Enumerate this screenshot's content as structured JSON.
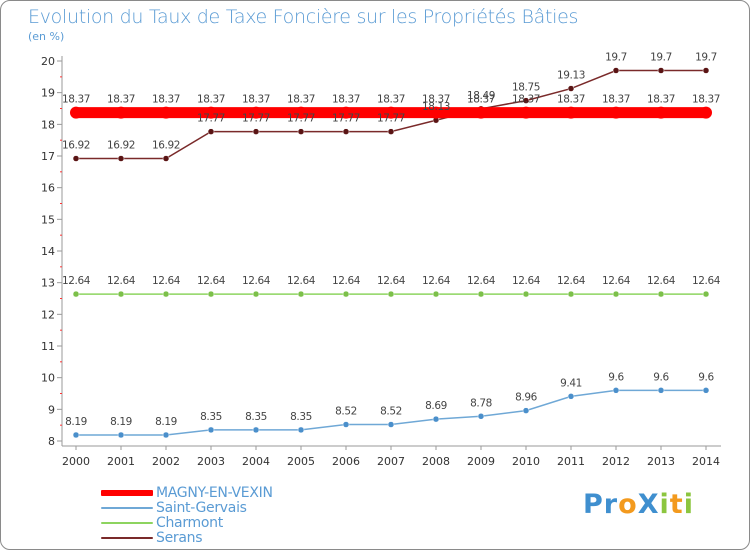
{
  "title": "Evolution du Taux de Taxe Foncière sur les Propriétés Bâties",
  "subtitle": "(en %)",
  "logo": {
    "text": "ProXiti",
    "letters": [
      {
        "ch": "P",
        "color": "#3f8fcf"
      },
      {
        "ch": "r",
        "color": "#3f8fcf"
      },
      {
        "ch": "o",
        "color": "#f39a1e"
      },
      {
        "ch": "X",
        "color": "#3f8fcf"
      },
      {
        "ch": "i",
        "color": "#8cc63f"
      },
      {
        "ch": "t",
        "color": "#f39a1e"
      },
      {
        "ch": "i",
        "color": "#8cc63f"
      }
    ]
  },
  "chart_data": {
    "type": "line",
    "title": "Evolution du Taux de Taxe Foncière sur les Propriétés Bâties",
    "ylabel": "(en %)",
    "xlabel": "",
    "ylim": [
      8,
      20
    ],
    "y_ticks": [
      "8",
      "9",
      "10",
      "11",
      "12",
      "13",
      "14",
      "15",
      "16",
      "17",
      "18",
      "19",
      "20"
    ],
    "x": [
      "2000",
      "2001",
      "2002",
      "2003",
      "2004",
      "2005",
      "2006",
      "2007",
      "2008",
      "2009",
      "2010",
      "2011",
      "2012",
      "2013",
      "2014"
    ],
    "grid": false,
    "legend_position": "bottom-left",
    "series": [
      {
        "name": "MAGNY-EN-VEXIN",
        "color": "#ff0000",
        "values": [
          18.37,
          18.37,
          18.37,
          18.37,
          18.37,
          18.37,
          18.37,
          18.37,
          18.37,
          18.37,
          18.37,
          18.37,
          18.37,
          18.37,
          18.37
        ],
        "labels": [
          "18.37",
          "18.37",
          "18.37",
          "18.37",
          "18.37",
          "18.37",
          "18.37",
          "18.37",
          "18.37",
          "18.37",
          "18.37",
          "18.37",
          "18.37",
          "18.37",
          "18.37"
        ]
      },
      {
        "name": "Saint-Gervais",
        "color": "#6fa8d6",
        "marker": "#4a8fcb",
        "values": [
          8.19,
          8.19,
          8.19,
          8.35,
          8.35,
          8.35,
          8.52,
          8.52,
          8.69,
          8.78,
          8.96,
          9.41,
          9.6,
          9.6,
          9.6
        ],
        "labels": [
          "8.19",
          "8.19",
          "8.19",
          "8.35",
          "8.35",
          "8.35",
          "8.52",
          "8.52",
          "8.69",
          "8.78",
          "8.96",
          "9.41",
          "9.6",
          "9.6",
          "9.6"
        ]
      },
      {
        "name": "Charmont",
        "color": "#8dd45f",
        "marker": "#7cc04a",
        "values": [
          12.64,
          12.64,
          12.64,
          12.64,
          12.64,
          12.64,
          12.64,
          12.64,
          12.64,
          12.64,
          12.64,
          12.64,
          12.64,
          12.64,
          12.64
        ],
        "labels": [
          "12.64",
          "12.64",
          "12.64",
          "12.64",
          "12.64",
          "12.64",
          "12.64",
          "12.64",
          "12.64",
          "12.64",
          "12.64",
          "12.64",
          "12.64",
          "12.64",
          "12.64"
        ]
      },
      {
        "name": "Serans",
        "color": "#7a2a2a",
        "marker": "#5a1414",
        "values": [
          16.92,
          16.92,
          16.92,
          17.77,
          17.77,
          17.77,
          17.77,
          17.77,
          18.13,
          18.49,
          18.75,
          19.13,
          19.7,
          19.7,
          19.7
        ],
        "labels": [
          "16.92",
          "16.92",
          "16.92",
          "17.77",
          "17.77",
          "17.77",
          "17.77",
          "17.77",
          "18.13",
          "18.49",
          "18.75",
          "19.13",
          "19.7",
          "19.7",
          "19.7"
        ]
      }
    ]
  }
}
